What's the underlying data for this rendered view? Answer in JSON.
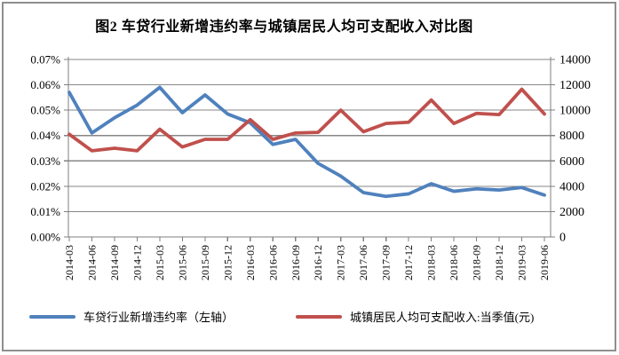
{
  "chart_data": {
    "type": "line",
    "title": "图2 车贷行业新增违约率与城镇居民人均可支配收入对比图",
    "categories": [
      "2014-03",
      "2014-06",
      "2014-09",
      "2014-12",
      "2015-03",
      "2015-06",
      "2015-09",
      "2015-12",
      "2016-03",
      "2016-06",
      "2016-09",
      "2016-12",
      "2017-03",
      "2017-06",
      "2017-09",
      "2017-12",
      "2018-03",
      "2018-06",
      "2018-09",
      "2018-12",
      "2019-03",
      "2019-06"
    ],
    "series": [
      {
        "name": "车贷行业新增违约率（左轴）",
        "axis": "left",
        "color": "#4F81BD",
        "unit": "%",
        "values": [
          0.057,
          0.041,
          0.047,
          0.052,
          0.059,
          0.049,
          0.056,
          0.0485,
          0.045,
          0.0365,
          0.0385,
          0.029,
          0.024,
          0.0175,
          0.016,
          0.017,
          0.021,
          0.018,
          0.019,
          0.0185,
          0.0195,
          0.0165
        ]
      },
      {
        "name": "城镇居民人均可支配收入:当季值(元)",
        "axis": "right",
        "color": "#C0504D",
        "unit": "元",
        "values": [
          8100,
          6800,
          7000,
          6800,
          8500,
          7100,
          7700,
          7700,
          9250,
          7700,
          8200,
          8250,
          10000,
          8300,
          8950,
          9050,
          10800,
          8950,
          9750,
          9650,
          11650,
          9700
        ]
      }
    ],
    "left_axis": {
      "min": 0,
      "max": 0.07,
      "tick_labels": [
        "0.07%",
        "0.06%",
        "0.05%",
        "0.04%",
        "0.03%",
        "0.02%",
        "0.01%",
        "0.00%"
      ]
    },
    "right_axis": {
      "min": 0,
      "max": 14000,
      "tick_labels": [
        "14000",
        "12000",
        "10000",
        "8000",
        "6000",
        "4000",
        "2000",
        "0"
      ]
    },
    "grid": true,
    "legend_position": "bottom",
    "xlabel": "",
    "ylabel": ""
  }
}
